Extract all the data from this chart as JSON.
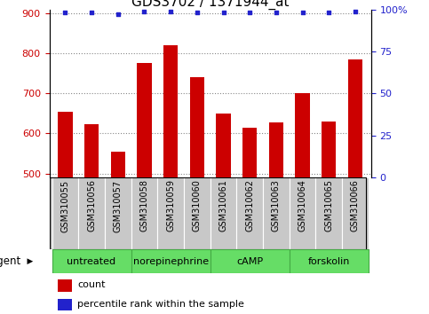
{
  "title": "GDS3702 / 1371944_at",
  "samples": [
    "GSM310055",
    "GSM310056",
    "GSM310057",
    "GSM310058",
    "GSM310059",
    "GSM310060",
    "GSM310061",
    "GSM310062",
    "GSM310063",
    "GSM310064",
    "GSM310065",
    "GSM310066"
  ],
  "counts": [
    655,
    622,
    555,
    775,
    820,
    740,
    650,
    615,
    628,
    700,
    630,
    785
  ],
  "percentiles": [
    98,
    98,
    97,
    99,
    99,
    98,
    98,
    98,
    98,
    98,
    98,
    99
  ],
  "ylim_left": [
    490,
    910
  ],
  "ylim_right": [
    0,
    100
  ],
  "yticks_left": [
    500,
    600,
    700,
    800,
    900
  ],
  "yticks_right": [
    0,
    25,
    50,
    75,
    100
  ],
  "bar_color": "#cc0000",
  "dot_color": "#2222cc",
  "bg_color": "#c8c8c8",
  "agent_bg_light": "#bbeebb",
  "agent_bg_dark": "#66dd66",
  "agent_border": "#44aa44",
  "groups": [
    {
      "label": "untreated",
      "start": 0,
      "end": 3
    },
    {
      "label": "norepinephrine",
      "start": 3,
      "end": 6
    },
    {
      "label": "cAMP",
      "start": 6,
      "end": 9
    },
    {
      "label": "forskolin",
      "start": 9,
      "end": 12
    }
  ],
  "legend_count_color": "#cc0000",
  "legend_dot_color": "#2222cc",
  "title_fontsize": 11,
  "tick_fontsize": 8,
  "label_fontsize": 8,
  "bar_width": 0.55,
  "figsize": [
    4.83,
    3.54
  ],
  "dpi": 100
}
